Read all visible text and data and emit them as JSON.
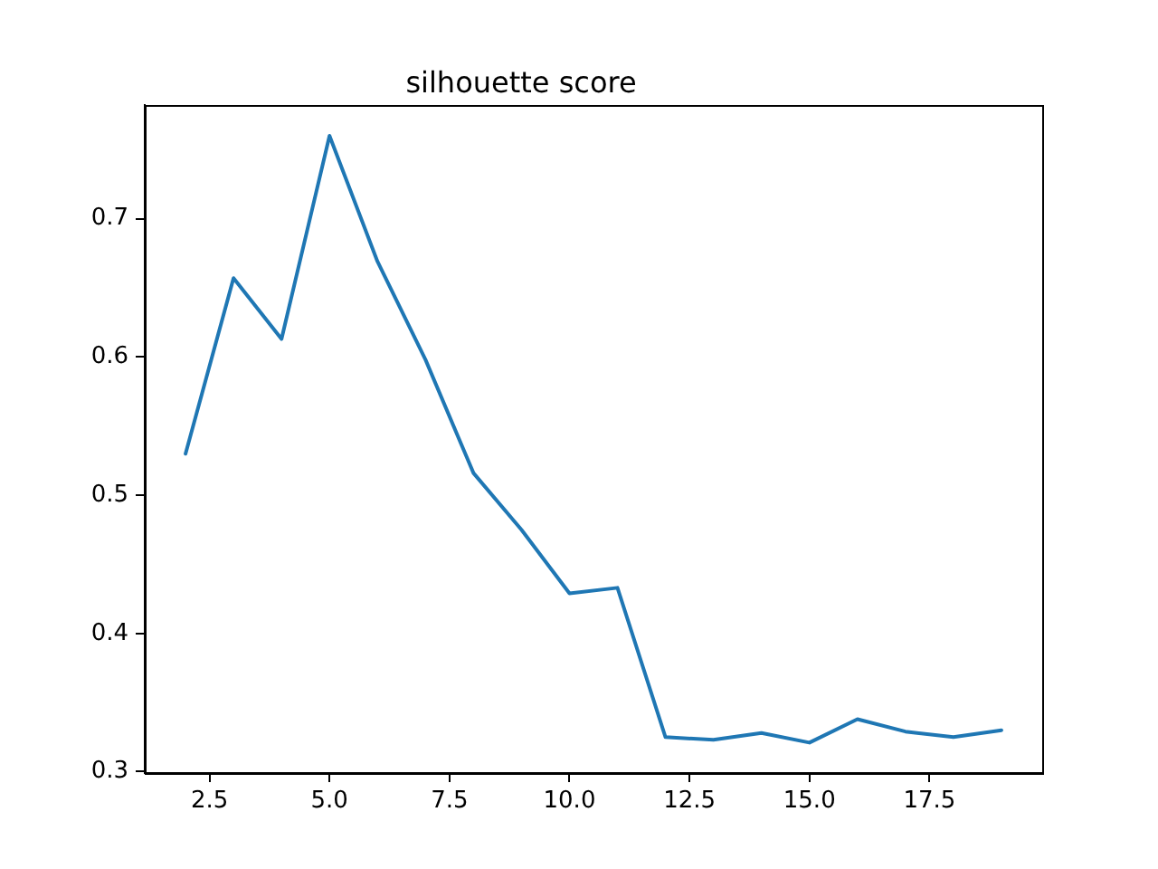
{
  "chart_data": {
    "type": "line",
    "title": "silhouette score",
    "x": [
      2,
      3,
      4,
      5,
      6,
      7,
      8,
      9,
      10,
      11,
      12,
      13,
      14,
      15,
      16,
      17,
      18,
      19
    ],
    "series": [
      {
        "color": "#1f77b4",
        "values": [
          0.53,
          0.657,
          0.613,
          0.76,
          0.669,
          0.598,
          0.516,
          0.475,
          0.429,
          0.433,
          0.325,
          0.323,
          0.328,
          0.321,
          0.338,
          0.329,
          0.325,
          0.33
        ]
      }
    ],
    "xlim": [
      1.15,
      19.85
    ],
    "xticks": [
      {
        "value": 2.5,
        "label": "2.5"
      },
      {
        "value": 5,
        "label": "5.0"
      },
      {
        "value": 7.5,
        "label": "7.5"
      },
      {
        "value": 10,
        "label": "10.0"
      },
      {
        "value": 12.5,
        "label": "12.5"
      },
      {
        "value": 15,
        "label": "15.0"
      },
      {
        "value": 17.5,
        "label": "17.5"
      }
    ],
    "ylim": [
      0.299,
      0.782
    ],
    "yticks": [
      0.3,
      0.4,
      0.5,
      0.6,
      0.7
    ],
    "grid": false,
    "legend": false
  }
}
